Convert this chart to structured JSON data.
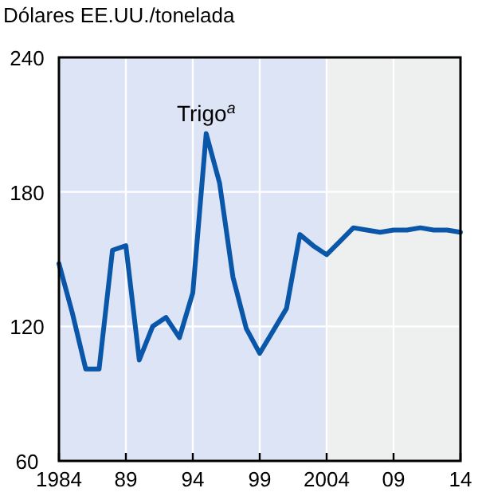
{
  "chart_data": {
    "type": "line",
    "ylabel": "Dólares EE.UU./tonelada",
    "x": [
      1984,
      1985,
      1986,
      1987,
      1988,
      1989,
      1990,
      1991,
      1992,
      1993,
      1994,
      1995,
      1996,
      1997,
      1998,
      1999,
      2000,
      2001,
      2002,
      2003,
      2004,
      2005,
      2006,
      2007,
      2008,
      2009,
      2010,
      2011,
      2012,
      2013,
      2014
    ],
    "series": [
      {
        "color": "#0a56a8",
        "values": [
          148,
          126,
          101,
          101,
          154,
          156,
          105,
          120,
          124,
          115,
          135,
          206,
          184,
          142,
          119,
          108,
          118,
          128,
          161,
          156,
          152,
          158,
          164,
          163,
          162,
          163,
          163,
          164,
          163,
          163,
          162
        ]
      }
    ],
    "xlim": [
      1984,
      2014
    ],
    "xticks": [
      1984,
      {
        "value": 1989,
        "label": "89"
      },
      {
        "value": 1994,
        "label": "94"
      },
      {
        "value": 1999,
        "label": "99"
      },
      2004,
      {
        "value": 2009,
        "label": "09"
      },
      {
        "value": 2014,
        "label": "14"
      }
    ],
    "ylim": [
      60,
      240
    ],
    "yticks": [
      60,
      120,
      180,
      240
    ],
    "grid": true,
    "marker": "none",
    "line_style": "solid",
    "bands": [
      {
        "axis": "x",
        "from": 1984,
        "to": 2004,
        "color": "#dde4f6"
      },
      {
        "axis": "x",
        "from": 2004,
        "to": 2014,
        "color": "#eef0f0"
      }
    ],
    "annotations": [
      {
        "text": "Trigo$^{a}$",
        "x": 1995,
        "y": 206
      }
    ]
  }
}
